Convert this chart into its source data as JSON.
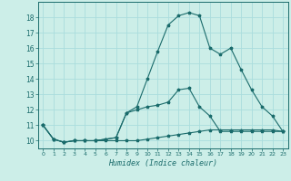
{
  "xlabel": "Humidex (Indice chaleur)",
  "background_color": "#cceee8",
  "grid_color": "#aadddd",
  "line_color": "#1a6b6b",
  "xlim": [
    -0.5,
    23.5
  ],
  "ylim": [
    9.5,
    19.0
  ],
  "xticks": [
    0,
    1,
    2,
    3,
    4,
    5,
    6,
    7,
    8,
    9,
    10,
    11,
    12,
    13,
    14,
    15,
    16,
    17,
    18,
    19,
    20,
    21,
    22,
    23
  ],
  "yticks": [
    10,
    11,
    12,
    13,
    14,
    15,
    16,
    17,
    18
  ],
  "line1_x": [
    0,
    1,
    2,
    3,
    4,
    5,
    6,
    7,
    8,
    9,
    10,
    11,
    12,
    13,
    14,
    15,
    16,
    17,
    18,
    19,
    20,
    21,
    22,
    23
  ],
  "line1_y": [
    11.0,
    10.1,
    9.9,
    10.0,
    10.0,
    10.0,
    10.0,
    10.0,
    10.0,
    10.0,
    10.1,
    10.2,
    10.3,
    10.4,
    10.5,
    10.6,
    10.7,
    10.7,
    10.7,
    10.7,
    10.7,
    10.7,
    10.7,
    10.6
  ],
  "line2_x": [
    0,
    1,
    2,
    3,
    4,
    5,
    6,
    7,
    8,
    9,
    10,
    11,
    12,
    13,
    14,
    15,
    16,
    17,
    18,
    19,
    20,
    21,
    22,
    23
  ],
  "line2_y": [
    11.0,
    10.1,
    9.9,
    10.0,
    10.0,
    10.0,
    10.1,
    10.2,
    11.8,
    12.0,
    12.2,
    12.3,
    12.5,
    13.3,
    13.4,
    12.2,
    11.6,
    10.6,
    10.6,
    10.6,
    10.6,
    10.6,
    10.6,
    10.6
  ],
  "line3_x": [
    0,
    1,
    2,
    3,
    4,
    5,
    6,
    7,
    8,
    9,
    10,
    11,
    12,
    13,
    14,
    15,
    16,
    17,
    18,
    19,
    20,
    21,
    22,
    23
  ],
  "line3_y": [
    11.0,
    10.1,
    9.9,
    10.0,
    10.0,
    10.0,
    10.1,
    10.2,
    11.8,
    12.2,
    14.0,
    15.8,
    17.5,
    18.1,
    18.3,
    18.1,
    16.0,
    15.6,
    16.0,
    14.6,
    13.3,
    12.2,
    11.6,
    10.6
  ],
  "markersize": 2.5,
  "linewidth": 0.8
}
